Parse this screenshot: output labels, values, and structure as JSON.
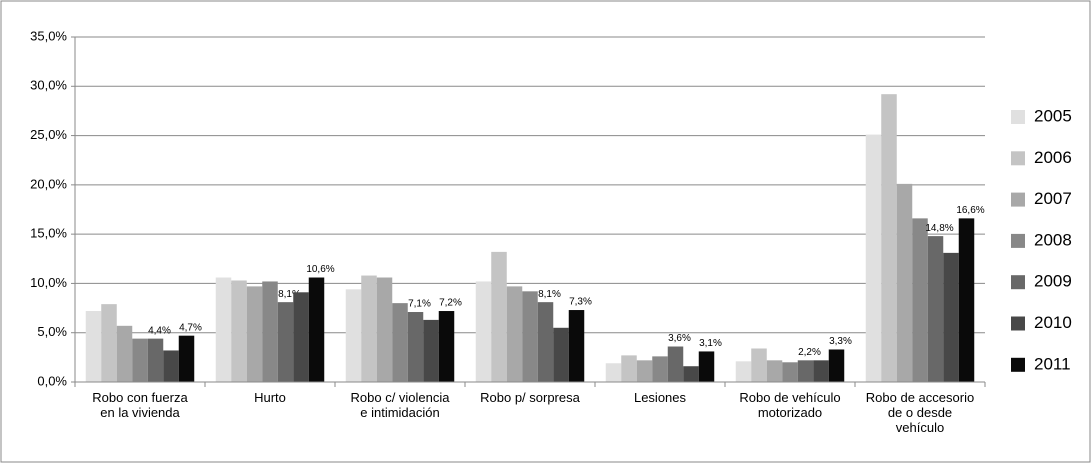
{
  "chart_data": {
    "type": "bar",
    "categories": [
      "Robo con fuerza\nen la vivienda",
      "Hurto",
      "Robo c/ violencia\ne intimidación",
      "Robo p/ sorpresa",
      "Lesiones",
      "Robo de vehículo\nmotorizado",
      "Robo de accesorio\nde o desde\nvehículo"
    ],
    "series": [
      {
        "name": "2005",
        "color": "#e0e0e0",
        "values": [
          7.2,
          10.6,
          9.4,
          10.2,
          1.9,
          2.1,
          25.1
        ]
      },
      {
        "name": "2006",
        "color": "#c4c4c4",
        "values": [
          7.9,
          10.3,
          10.8,
          13.2,
          2.7,
          3.4,
          29.2
        ]
      },
      {
        "name": "2007",
        "color": "#a8a8a8",
        "values": [
          5.7,
          9.7,
          10.6,
          9.7,
          2.2,
          2.2,
          20.1
        ]
      },
      {
        "name": "2008",
        "color": "#888888",
        "values": [
          4.4,
          10.2,
          8.0,
          9.2,
          2.6,
          2.0,
          16.6
        ]
      },
      {
        "name": "2009",
        "color": "#686868",
        "values": [
          4.4,
          8.1,
          7.1,
          8.1,
          3.6,
          2.2,
          14.8
        ],
        "value_labels": [
          "4,4%",
          "8,1%",
          "7,1%",
          "8,1%",
          "3,6%",
          "2,2%",
          "14,8%"
        ]
      },
      {
        "name": "2010",
        "color": "#484848",
        "values": [
          3.2,
          9.1,
          6.3,
          5.5,
          1.6,
          2.2,
          13.1
        ]
      },
      {
        "name": "2011",
        "color": "#0a0a0a",
        "values": [
          4.7,
          10.6,
          7.2,
          7.3,
          3.1,
          3.3,
          16.6
        ],
        "value_labels": [
          "4,7%",
          "10,6%",
          "7,2%",
          "7,3%",
          "3,1%",
          "3,3%",
          "16,6%"
        ]
      }
    ],
    "ylim": [
      0,
      35
    ],
    "yticks": [
      {
        "value": 0,
        "label": "0,0%"
      },
      {
        "value": 5,
        "label": "5,0%"
      },
      {
        "value": 10,
        "label": "10,0%"
      },
      {
        "value": 15,
        "label": "15,0%"
      },
      {
        "value": 20,
        "label": "20,0%"
      },
      {
        "value": 25,
        "label": "25,0%"
      },
      {
        "value": 30,
        "label": "30,0%"
      },
      {
        "value": 35,
        "label": "35,0%"
      }
    ],
    "grid": true,
    "legend": "right"
  }
}
